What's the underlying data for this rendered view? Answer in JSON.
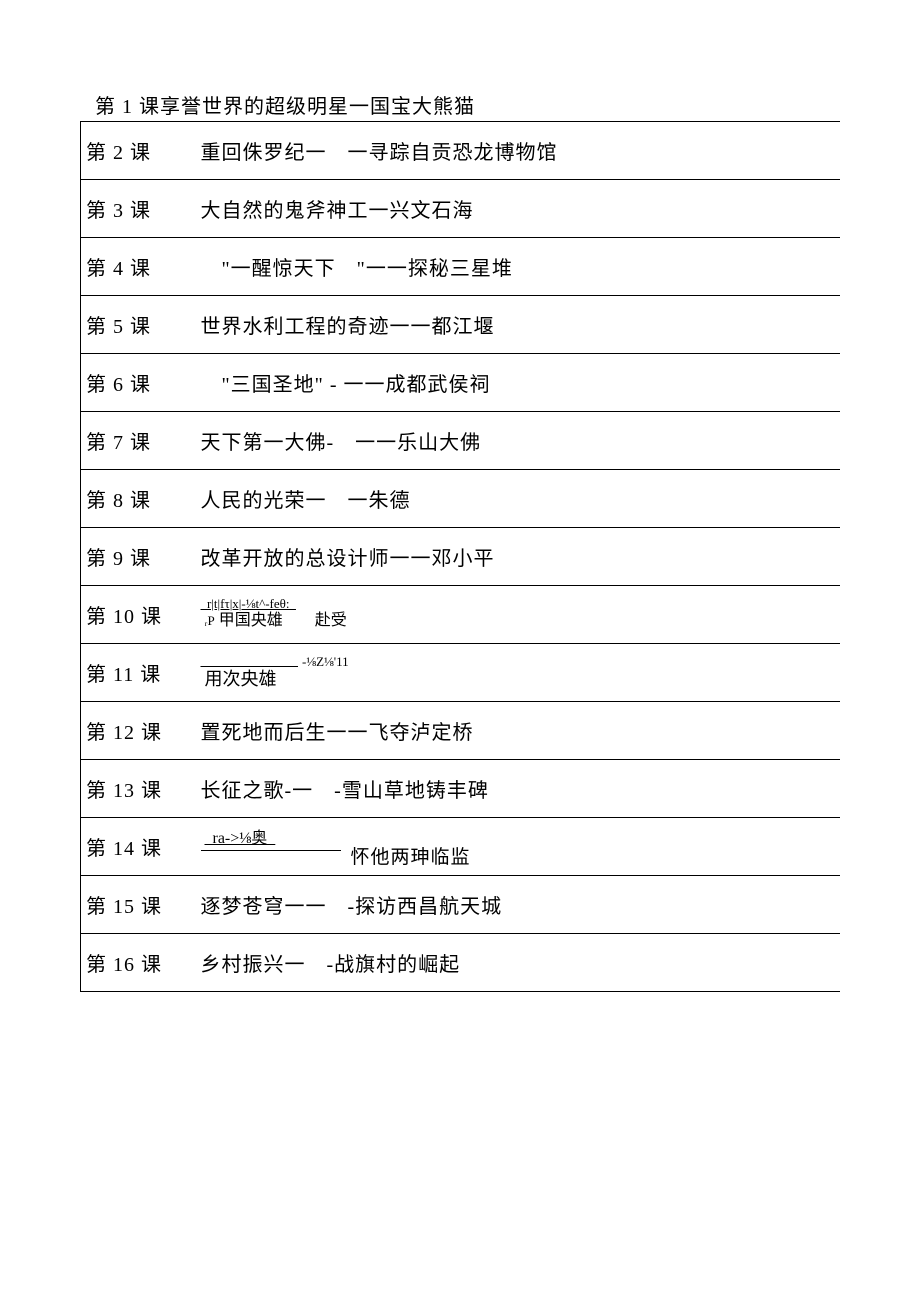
{
  "header": {
    "title": "第 1 课享誉世界的超级明星一国宝大熊猫"
  },
  "lessons": [
    {
      "num": "第 2 课",
      "title": "重回侏罗纪一　一寻踪自贡恐龙博物馆",
      "type": "normal"
    },
    {
      "num": "第 3 课",
      "title": "大自然的鬼斧神工一兴文石海",
      "type": "normal"
    },
    {
      "num": "第 4 课",
      "title": "　\"一醒惊天下　\"一一探秘三星堆",
      "type": "normal"
    },
    {
      "num": "第 5 课",
      "title": "世界水利工程的奇迹一一都江堰",
      "type": "normal"
    },
    {
      "num": "第 6 课",
      "title": "　\"三国圣地\" - 一一成都武侯祠",
      "type": "normal"
    },
    {
      "num": "第 7 课",
      "title": "天下第一大佛-　一一乐山大佛",
      "type": "normal"
    },
    {
      "num": "第 8 课",
      "title": "人民的光荣一　一朱德",
      "type": "normal"
    },
    {
      "num": "第 9 课",
      "title": "改革开放的总设计师一一邓小平",
      "type": "normal"
    },
    {
      "num": "第 10 课",
      "top": "r|t|fτ|x|-⅛t^-feθ:",
      "bottom_prefix": "ᵣP",
      "bottom": " 甲国央雄　　赴受",
      "type": "complex"
    },
    {
      "num": "第 11 课",
      "bottom": "用次央雄",
      "after": "-⅛Z⅛'11",
      "type": "complex2"
    },
    {
      "num": "第 12 课",
      "title": "置死地而后生一一飞夺泸定桥",
      "type": "normal"
    },
    {
      "num": "第 13 课",
      "title": "长征之歌-一　-雪山草地铸丰碑",
      "type": "normal"
    },
    {
      "num": "第 14 课",
      "top": "ra->⅛奥",
      "right": "怀他两珅临监",
      "type": "complex3"
    },
    {
      "num": "第 15 课",
      "title": "逐梦苍穹一一　-探访西昌航天城",
      "type": "normal"
    },
    {
      "num": "第 16 课",
      "title": "乡村振兴一　-战旗村的崛起",
      "type": "normal"
    }
  ],
  "colors": {
    "background": "#ffffff",
    "text": "#000000",
    "border": "#000000"
  },
  "typography": {
    "font_family": "SimSun",
    "title_fontsize": 20,
    "cell_fontsize": 20,
    "garble_fontsize": 13
  }
}
